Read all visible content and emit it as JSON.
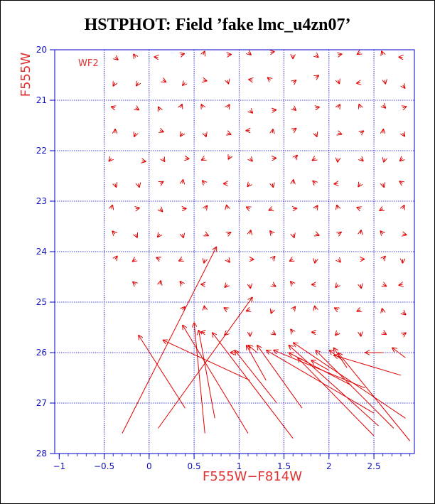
{
  "page": {
    "title": "HSTPHOT: Field ’fake lmc_u4zn07’"
  },
  "colors": {
    "axes": "#0000c8",
    "grid": "#0000c8",
    "vectors": "#e00000",
    "labels": "#e03030",
    "background": "#ffffff"
  },
  "chart_data": {
    "type": "scatter",
    "title": "HSTPHOT: Field ’fake lmc_u4zn07’",
    "subtitle": "",
    "xlabel": "F555W−F814W",
    "ylabel": "F555W",
    "annotation": "WF2",
    "xlim": [
      -1.05,
      2.95
    ],
    "ylim": [
      28,
      20
    ],
    "y_axis_inverted": true,
    "grid": true,
    "x_ticks": [
      {
        "value": -1,
        "label": "−1"
      },
      {
        "value": -0.5,
        "label": "−0.5"
      },
      {
        "value": 0,
        "label": "0"
      },
      {
        "value": 0.5,
        "label": "0.5"
      },
      {
        "value": 1,
        "label": "1"
      },
      {
        "value": 1.5,
        "label": "1.5"
      },
      {
        "value": 2,
        "label": "2"
      },
      {
        "value": 2.5,
        "label": "2.5"
      }
    ],
    "y_ticks": [
      {
        "value": 20,
        "label": "20"
      },
      {
        "value": 21,
        "label": "21"
      },
      {
        "value": 22,
        "label": "22"
      },
      {
        "value": 23,
        "label": "23"
      },
      {
        "value": 24,
        "label": "24"
      },
      {
        "value": 25,
        "label": "25"
      },
      {
        "value": 26,
        "label": "26"
      },
      {
        "value": 27,
        "label": "27"
      },
      {
        "value": 28,
        "label": "28"
      }
    ],
    "vectors": [
      {
        "x1": -0.38,
        "y1": 20.15,
        "x2": -0.38,
        "y2": 20.15
      },
      {
        "x1": -0.15,
        "y1": 20.15,
        "x2": -0.15,
        "y2": 20.15
      },
      {
        "x1": 0.1,
        "y1": 20.15,
        "x2": 0.1,
        "y2": 20.15
      },
      {
        "x1": 0.35,
        "y1": 20.1,
        "x2": 0.35,
        "y2": 20.1
      },
      {
        "x1": 0.6,
        "y1": 20.1,
        "x2": 0.6,
        "y2": 20.1
      },
      {
        "x1": 0.87,
        "y1": 20.1,
        "x2": 0.87,
        "y2": 20.1
      },
      {
        "x1": 1.1,
        "y1": 20.05,
        "x2": 1.1,
        "y2": 20.05
      },
      {
        "x1": 1.35,
        "y1": 20.05,
        "x2": 1.35,
        "y2": 20.05
      },
      {
        "x1": 1.6,
        "y1": 20.1,
        "x2": 1.6,
        "y2": 20.1
      },
      {
        "x1": 1.85,
        "y1": 20.1,
        "x2": 1.85,
        "y2": 20.1
      },
      {
        "x1": 2.1,
        "y1": 20.1,
        "x2": 2.1,
        "y2": 20.1
      },
      {
        "x1": 2.35,
        "y1": 20.05,
        "x2": 2.35,
        "y2": 20.05
      },
      {
        "x1": 2.6,
        "y1": 20.1,
        "x2": 2.6,
        "y2": 20.1
      },
      {
        "x1": 2.82,
        "y1": 20.15,
        "x2": 2.82,
        "y2": 20.15
      },
      {
        "x1": -0.38,
        "y1": 20.65,
        "x2": -0.38,
        "y2": 20.65
      },
      {
        "x1": -0.12,
        "y1": 20.65,
        "x2": -0.12,
        "y2": 20.65
      },
      {
        "x1": 0.15,
        "y1": 20.6,
        "x2": 0.15,
        "y2": 20.6
      },
      {
        "x1": 0.4,
        "y1": 20.65,
        "x2": 0.4,
        "y2": 20.65
      },
      {
        "x1": 0.6,
        "y1": 20.6,
        "x2": 0.6,
        "y2": 20.6
      },
      {
        "x1": 0.87,
        "y1": 20.6,
        "x2": 0.87,
        "y2": 20.6
      },
      {
        "x1": 1.15,
        "y1": 20.6,
        "x2": 1.15,
        "y2": 20.6
      },
      {
        "x1": 1.35,
        "y1": 20.6,
        "x2": 1.35,
        "y2": 20.6
      },
      {
        "x1": 1.6,
        "y1": 20.65,
        "x2": 1.6,
        "y2": 20.65
      },
      {
        "x1": 1.85,
        "y1": 20.55,
        "x2": 1.85,
        "y2": 20.55
      },
      {
        "x1": 2.1,
        "y1": 20.6,
        "x2": 2.1,
        "y2": 20.6
      },
      {
        "x1": 2.35,
        "y1": 20.65,
        "x2": 2.35,
        "y2": 20.65
      },
      {
        "x1": 2.62,
        "y1": 20.6,
        "x2": 2.62,
        "y2": 20.6
      },
      {
        "x1": 2.82,
        "y1": 20.7,
        "x2": 2.82,
        "y2": 20.7
      },
      {
        "x1": -0.38,
        "y1": 21.15,
        "x2": -0.38,
        "y2": 21.15
      },
      {
        "x1": -0.15,
        "y1": 21.15,
        "x2": -0.15,
        "y2": 21.15
      },
      {
        "x1": 0.12,
        "y1": 21.2,
        "x2": 0.12,
        "y2": 21.2
      },
      {
        "x1": 0.35,
        "y1": 21.15,
        "x2": 0.35,
        "y2": 21.15
      },
      {
        "x1": 0.6,
        "y1": 21.15,
        "x2": 0.6,
        "y2": 21.15
      },
      {
        "x1": 0.87,
        "y1": 21.15,
        "x2": 0.87,
        "y2": 21.15
      },
      {
        "x1": 1.12,
        "y1": 21.2,
        "x2": 1.12,
        "y2": 21.2
      },
      {
        "x1": 1.37,
        "y1": 21.2,
        "x2": 1.37,
        "y2": 21.2
      },
      {
        "x1": 1.6,
        "y1": 21.15,
        "x2": 1.6,
        "y2": 21.15
      },
      {
        "x1": 1.85,
        "y1": 21.15,
        "x2": 1.85,
        "y2": 21.15
      },
      {
        "x1": 2.1,
        "y1": 21.15,
        "x2": 2.1,
        "y2": 21.15
      },
      {
        "x1": 2.35,
        "y1": 21.15,
        "x2": 2.35,
        "y2": 21.15
      },
      {
        "x1": 2.6,
        "y1": 21.1,
        "x2": 2.6,
        "y2": 21.1
      },
      {
        "x1": 2.82,
        "y1": 21.15,
        "x2": 2.82,
        "y2": 21.15
      },
      {
        "x1": -0.38,
        "y1": 21.65,
        "x2": -0.38,
        "y2": 21.65
      },
      {
        "x1": -0.15,
        "y1": 21.65,
        "x2": -0.15,
        "y2": 21.65
      },
      {
        "x1": 0.12,
        "y1": 21.6,
        "x2": 0.12,
        "y2": 21.6
      },
      {
        "x1": 0.37,
        "y1": 21.65,
        "x2": 0.37,
        "y2": 21.65
      },
      {
        "x1": 0.62,
        "y1": 21.65,
        "x2": 0.62,
        "y2": 21.65
      },
      {
        "x1": 0.87,
        "y1": 21.65,
        "x2": 0.87,
        "y2": 21.65
      },
      {
        "x1": 1.12,
        "y1": 21.6,
        "x2": 1.12,
        "y2": 21.6
      },
      {
        "x1": 1.37,
        "y1": 21.65,
        "x2": 1.37,
        "y2": 21.65
      },
      {
        "x1": 1.6,
        "y1": 21.6,
        "x2": 1.6,
        "y2": 21.6
      },
      {
        "x1": 1.85,
        "y1": 21.65,
        "x2": 1.85,
        "y2": 21.65
      },
      {
        "x1": 2.1,
        "y1": 21.65,
        "x2": 2.1,
        "y2": 21.65
      },
      {
        "x1": 2.35,
        "y1": 21.65,
        "x2": 2.35,
        "y2": 21.65
      },
      {
        "x1": 2.6,
        "y1": 21.65,
        "x2": 2.6,
        "y2": 21.65
      },
      {
        "x1": 2.82,
        "y1": 21.65,
        "x2": 2.82,
        "y2": 21.65
      },
      {
        "x1": -0.42,
        "y1": 22.15,
        "x2": -0.42,
        "y2": 22.15
      },
      {
        "x1": -0.08,
        "y1": 22.2,
        "x2": -0.08,
        "y2": 22.2
      },
      {
        "x1": 0.15,
        "y1": 22.15,
        "x2": 0.15,
        "y2": 22.15
      },
      {
        "x1": 0.4,
        "y1": 22.15,
        "x2": 0.4,
        "y2": 22.15
      },
      {
        "x1": 0.62,
        "y1": 22.15,
        "x2": 0.62,
        "y2": 22.15
      },
      {
        "x1": 0.9,
        "y1": 22.1,
        "x2": 0.9,
        "y2": 22.1
      },
      {
        "x1": 1.12,
        "y1": 22.15,
        "x2": 1.12,
        "y2": 22.15
      },
      {
        "x1": 1.37,
        "y1": 22.15,
        "x2": 1.37,
        "y2": 22.15
      },
      {
        "x1": 1.62,
        "y1": 22.15,
        "x2": 1.62,
        "y2": 22.15
      },
      {
        "x1": 1.85,
        "y1": 22.15,
        "x2": 1.85,
        "y2": 22.15
      },
      {
        "x1": 2.1,
        "y1": 22.15,
        "x2": 2.1,
        "y2": 22.15
      },
      {
        "x1": 2.35,
        "y1": 22.15,
        "x2": 2.35,
        "y2": 22.15
      },
      {
        "x1": 2.62,
        "y1": 22.15,
        "x2": 2.62,
        "y2": 22.15
      },
      {
        "x1": 2.82,
        "y1": 22.15,
        "x2": 2.82,
        "y2": 22.15
      },
      {
        "x1": -0.38,
        "y1": 22.65,
        "x2": -0.38,
        "y2": 22.65
      },
      {
        "x1": -0.12,
        "y1": 22.65,
        "x2": -0.12,
        "y2": 22.65
      },
      {
        "x1": 0.12,
        "y1": 22.65,
        "x2": 0.12,
        "y2": 22.65
      },
      {
        "x1": 0.37,
        "y1": 22.65,
        "x2": 0.37,
        "y2": 22.65
      },
      {
        "x1": 0.62,
        "y1": 22.65,
        "x2": 0.62,
        "y2": 22.65
      },
      {
        "x1": 0.87,
        "y1": 22.65,
        "x2": 0.87,
        "y2": 22.65
      },
      {
        "x1": 1.12,
        "y1": 22.65,
        "x2": 1.12,
        "y2": 22.65
      },
      {
        "x1": 1.37,
        "y1": 22.65,
        "x2": 1.37,
        "y2": 22.65
      },
      {
        "x1": 1.6,
        "y1": 22.65,
        "x2": 1.6,
        "y2": 22.65
      },
      {
        "x1": 1.85,
        "y1": 22.65,
        "x2": 1.85,
        "y2": 22.65
      },
      {
        "x1": 2.1,
        "y1": 22.65,
        "x2": 2.1,
        "y2": 22.65
      },
      {
        "x1": 2.35,
        "y1": 22.65,
        "x2": 2.35,
        "y2": 22.65
      },
      {
        "x1": 2.6,
        "y1": 22.65,
        "x2": 2.6,
        "y2": 22.65
      },
      {
        "x1": 2.82,
        "y1": 22.65,
        "x2": 2.82,
        "y2": 22.65
      },
      {
        "x1": -0.42,
        "y1": 23.15,
        "x2": -0.42,
        "y2": 23.15
      },
      {
        "x1": -0.15,
        "y1": 23.15,
        "x2": -0.15,
        "y2": 23.15
      },
      {
        "x1": 0.12,
        "y1": 23.15,
        "x2": 0.12,
        "y2": 23.15
      },
      {
        "x1": 0.37,
        "y1": 23.15,
        "x2": 0.37,
        "y2": 23.15
      },
      {
        "x1": 0.62,
        "y1": 23.15,
        "x2": 0.62,
        "y2": 23.15
      },
      {
        "x1": 0.87,
        "y1": 23.15,
        "x2": 0.87,
        "y2": 23.15
      },
      {
        "x1": 1.12,
        "y1": 23.15,
        "x2": 1.12,
        "y2": 23.15
      },
      {
        "x1": 1.37,
        "y1": 23.15,
        "x2": 1.37,
        "y2": 23.15
      },
      {
        "x1": 1.6,
        "y1": 23.15,
        "x2": 1.6,
        "y2": 23.15
      },
      {
        "x1": 1.85,
        "y1": 23.15,
        "x2": 1.85,
        "y2": 23.15
      },
      {
        "x1": 2.1,
        "y1": 23.15,
        "x2": 2.1,
        "y2": 23.15
      },
      {
        "x1": 2.35,
        "y1": 23.15,
        "x2": 2.35,
        "y2": 23.15
      },
      {
        "x1": 2.6,
        "y1": 23.15,
        "x2": 2.6,
        "y2": 23.15
      },
      {
        "x1": 2.82,
        "y1": 23.15,
        "x2": 2.82,
        "y2": 23.15
      },
      {
        "x1": -0.38,
        "y1": 23.65,
        "x2": -0.38,
        "y2": 23.65
      },
      {
        "x1": -0.15,
        "y1": 23.65,
        "x2": -0.15,
        "y2": 23.65
      },
      {
        "x1": 0.12,
        "y1": 23.65,
        "x2": 0.12,
        "y2": 23.65
      },
      {
        "x1": 0.37,
        "y1": 23.65,
        "x2": 0.37,
        "y2": 23.65
      },
      {
        "x1": 0.62,
        "y1": 23.65,
        "x2": 0.62,
        "y2": 23.65
      },
      {
        "x1": 0.87,
        "y1": 23.65,
        "x2": 0.87,
        "y2": 23.65
      },
      {
        "x1": 1.12,
        "y1": 23.65,
        "x2": 1.12,
        "y2": 23.65
      },
      {
        "x1": 1.37,
        "y1": 23.65,
        "x2": 1.37,
        "y2": 23.65
      },
      {
        "x1": 1.6,
        "y1": 23.65,
        "x2": 1.6,
        "y2": 23.65
      },
      {
        "x1": 1.85,
        "y1": 23.65,
        "x2": 1.85,
        "y2": 23.65
      },
      {
        "x1": 2.1,
        "y1": 23.65,
        "x2": 2.1,
        "y2": 23.65
      },
      {
        "x1": 2.35,
        "y1": 23.65,
        "x2": 2.35,
        "y2": 23.65
      },
      {
        "x1": 2.6,
        "y1": 23.65,
        "x2": 2.6,
        "y2": 23.65
      },
      {
        "x1": 2.82,
        "y1": 23.65,
        "x2": 2.82,
        "y2": 23.65
      },
      {
        "x1": -0.38,
        "y1": 24.15,
        "x2": -0.38,
        "y2": 24.15
      },
      {
        "x1": -0.15,
        "y1": 24.15,
        "x2": -0.15,
        "y2": 24.15
      },
      {
        "x1": 0.12,
        "y1": 24.15,
        "x2": 0.12,
        "y2": 24.15
      },
      {
        "x1": 0.37,
        "y1": 24.15,
        "x2": 0.37,
        "y2": 24.15
      },
      {
        "x1": 0.62,
        "y1": 24.15,
        "x2": 0.62,
        "y2": 24.15
      },
      {
        "x1": 0.87,
        "y1": 24.15,
        "x2": 0.87,
        "y2": 24.15
      },
      {
        "x1": 1.12,
        "y1": 24.15,
        "x2": 1.12,
        "y2": 24.15
      },
      {
        "x1": 1.37,
        "y1": 24.15,
        "x2": 1.37,
        "y2": 24.15
      },
      {
        "x1": 1.6,
        "y1": 24.15,
        "x2": 1.6,
        "y2": 24.15
      },
      {
        "x1": 1.85,
        "y1": 24.15,
        "x2": 1.85,
        "y2": 24.15
      },
      {
        "x1": 2.1,
        "y1": 24.15,
        "x2": 2.1,
        "y2": 24.15
      },
      {
        "x1": 2.35,
        "y1": 24.15,
        "x2": 2.35,
        "y2": 24.15
      },
      {
        "x1": 2.6,
        "y1": 24.15,
        "x2": 2.6,
        "y2": 24.15
      },
      {
        "x1": 2.82,
        "y1": 24.15,
        "x2": 2.82,
        "y2": 24.15
      },
      {
        "x1": -0.15,
        "y1": 24.65,
        "x2": -0.15,
        "y2": 24.65
      },
      {
        "x1": 0.12,
        "y1": 24.65,
        "x2": 0.12,
        "y2": 24.65
      },
      {
        "x1": 0.37,
        "y1": 24.65,
        "x2": 0.37,
        "y2": 24.65
      },
      {
        "x1": 0.62,
        "y1": 24.65,
        "x2": 0.62,
        "y2": 24.65
      },
      {
        "x1": 0.87,
        "y1": 24.65,
        "x2": 0.87,
        "y2": 24.65
      },
      {
        "x1": 1.12,
        "y1": 24.65,
        "x2": 1.12,
        "y2": 24.65
      },
      {
        "x1": 1.37,
        "y1": 24.65,
        "x2": 1.37,
        "y2": 24.65
      },
      {
        "x1": 1.6,
        "y1": 24.65,
        "x2": 1.6,
        "y2": 24.65
      },
      {
        "x1": 1.85,
        "y1": 24.65,
        "x2": 1.85,
        "y2": 24.65
      },
      {
        "x1": 2.1,
        "y1": 24.65,
        "x2": 2.1,
        "y2": 24.65
      },
      {
        "x1": 2.35,
        "y1": 24.65,
        "x2": 2.35,
        "y2": 24.65
      },
      {
        "x1": 2.6,
        "y1": 24.65,
        "x2": 2.6,
        "y2": 24.65
      },
      {
        "x1": 2.82,
        "y1": 24.65,
        "x2": 2.82,
        "y2": 24.65
      },
      {
        "x1": 0.37,
        "y1": 25.15,
        "x2": 0.37,
        "y2": 25.15
      },
      {
        "x1": 0.62,
        "y1": 25.15,
        "x2": 0.62,
        "y2": 25.15
      },
      {
        "x1": 0.87,
        "y1": 25.15,
        "x2": 0.87,
        "y2": 25.15
      },
      {
        "x1": 1.12,
        "y1": 25.15,
        "x2": 1.12,
        "y2": 25.15
      },
      {
        "x1": 1.37,
        "y1": 25.15,
        "x2": 1.37,
        "y2": 25.15
      },
      {
        "x1": 1.6,
        "y1": 25.15,
        "x2": 1.6,
        "y2": 25.15
      },
      {
        "x1": 1.85,
        "y1": 25.15,
        "x2": 1.85,
        "y2": 25.15
      },
      {
        "x1": 2.1,
        "y1": 25.15,
        "x2": 2.1,
        "y2": 25.15
      },
      {
        "x1": 2.35,
        "y1": 25.15,
        "x2": 2.35,
        "y2": 25.15
      },
      {
        "x1": 2.6,
        "y1": 25.2,
        "x2": 2.6,
        "y2": 25.2
      },
      {
        "x1": 2.82,
        "y1": 25.2,
        "x2": 2.82,
        "y2": 25.2
      },
      {
        "x1": 0.62,
        "y1": 25.6,
        "x2": 0.62,
        "y2": 25.6
      },
      {
        "x1": 0.87,
        "y1": 25.6,
        "x2": 0.87,
        "y2": 25.6
      },
      {
        "x1": 1.12,
        "y1": 25.6,
        "x2": 1.12,
        "y2": 25.6
      },
      {
        "x1": 1.37,
        "y1": 25.6,
        "x2": 1.37,
        "y2": 25.6
      },
      {
        "x1": 1.6,
        "y1": 25.6,
        "x2": 1.6,
        "y2": 25.6
      },
      {
        "x1": 1.85,
        "y1": 25.6,
        "x2": 1.85,
        "y2": 25.6
      },
      {
        "x1": 2.1,
        "y1": 25.6,
        "x2": 2.1,
        "y2": 25.6
      },
      {
        "x1": 2.35,
        "y1": 25.6,
        "x2": 2.35,
        "y2": 25.6
      },
      {
        "x1": 2.6,
        "y1": 25.6,
        "x2": 2.6,
        "y2": 25.6
      },
      {
        "x1": 2.82,
        "y1": 25.65,
        "x2": 2.82,
        "y2": 25.65
      },
      {
        "x1": -0.3,
        "y1": 27.6,
        "x2": 0.75,
        "y2": 23.9
      },
      {
        "x1": 1.1,
        "y1": 27.6,
        "x2": 0.37,
        "y2": 25.45
      },
      {
        "x1": 0.62,
        "y1": 27.6,
        "x2": 0.5,
        "y2": 25.4
      },
      {
        "x1": 1.6,
        "y1": 27.7,
        "x2": 0.7,
        "y2": 25.6
      },
      {
        "x1": 0.1,
        "y1": 27.5,
        "x2": 1.15,
        "y2": 24.9
      },
      {
        "x1": 0.4,
        "y1": 27.1,
        "x2": -0.12,
        "y2": 25.65
      },
      {
        "x1": 1.12,
        "y1": 26.55,
        "x2": 0.15,
        "y2": 25.75
      },
      {
        "x1": 0.73,
        "y1": 27.3,
        "x2": 0.55,
        "y2": 25.55
      },
      {
        "x1": 1.42,
        "y1": 27.0,
        "x2": 0.95,
        "y2": 25.95
      },
      {
        "x1": 1.3,
        "y1": 26.55,
        "x2": 1.08,
        "y2": 25.85
      },
      {
        "x1": 1.7,
        "y1": 27.1,
        "x2": 1.2,
        "y2": 25.85
      },
      {
        "x1": 2.5,
        "y1": 27.2,
        "x2": 1.3,
        "y2": 25.95
      },
      {
        "x1": 2.4,
        "y1": 26.7,
        "x2": 1.38,
        "y2": 25.95
      },
      {
        "x1": 2.25,
        "y1": 26.65,
        "x2": 1.55,
        "y2": 26.0
      },
      {
        "x1": 2.55,
        "y1": 27.45,
        "x2": 1.55,
        "y2": 25.85
      },
      {
        "x1": 2.85,
        "y1": 27.3,
        "x2": 1.6,
        "y2": 25.8
      },
      {
        "x1": 2.5,
        "y1": 27.65,
        "x2": 1.65,
        "y2": 26.1
      },
      {
        "x1": 2.72,
        "y1": 27.5,
        "x2": 1.85,
        "y2": 25.95
      },
      {
        "x1": 2.8,
        "y1": 26.45,
        "x2": 2.05,
        "y2": 26.05
      },
      {
        "x1": 2.9,
        "y1": 27.75,
        "x2": 2.1,
        "y2": 26.0
      },
      {
        "x1": 2.0,
        "y1": 26.35,
        "x2": 1.8,
        "y2": 26.15
      },
      {
        "x1": 2.2,
        "y1": 26.3,
        "x2": 2.05,
        "y2": 25.9
      },
      {
        "x1": 2.6,
        "y1": 26.0,
        "x2": 2.4,
        "y2": 26.0
      },
      {
        "x1": 2.85,
        "y1": 26.1,
        "x2": 2.7,
        "y2": 25.9
      },
      {
        "x1": 2.15,
        "y1": 26.15,
        "x2": 2.0,
        "y2": 25.95
      },
      {
        "x1": 1.0,
        "y1": 26.0,
        "x2": 0.9,
        "y2": 26.0
      },
      {
        "x1": 1.2,
        "y1": 26.0,
        "x2": 1.1,
        "y2": 25.85
      }
    ]
  }
}
